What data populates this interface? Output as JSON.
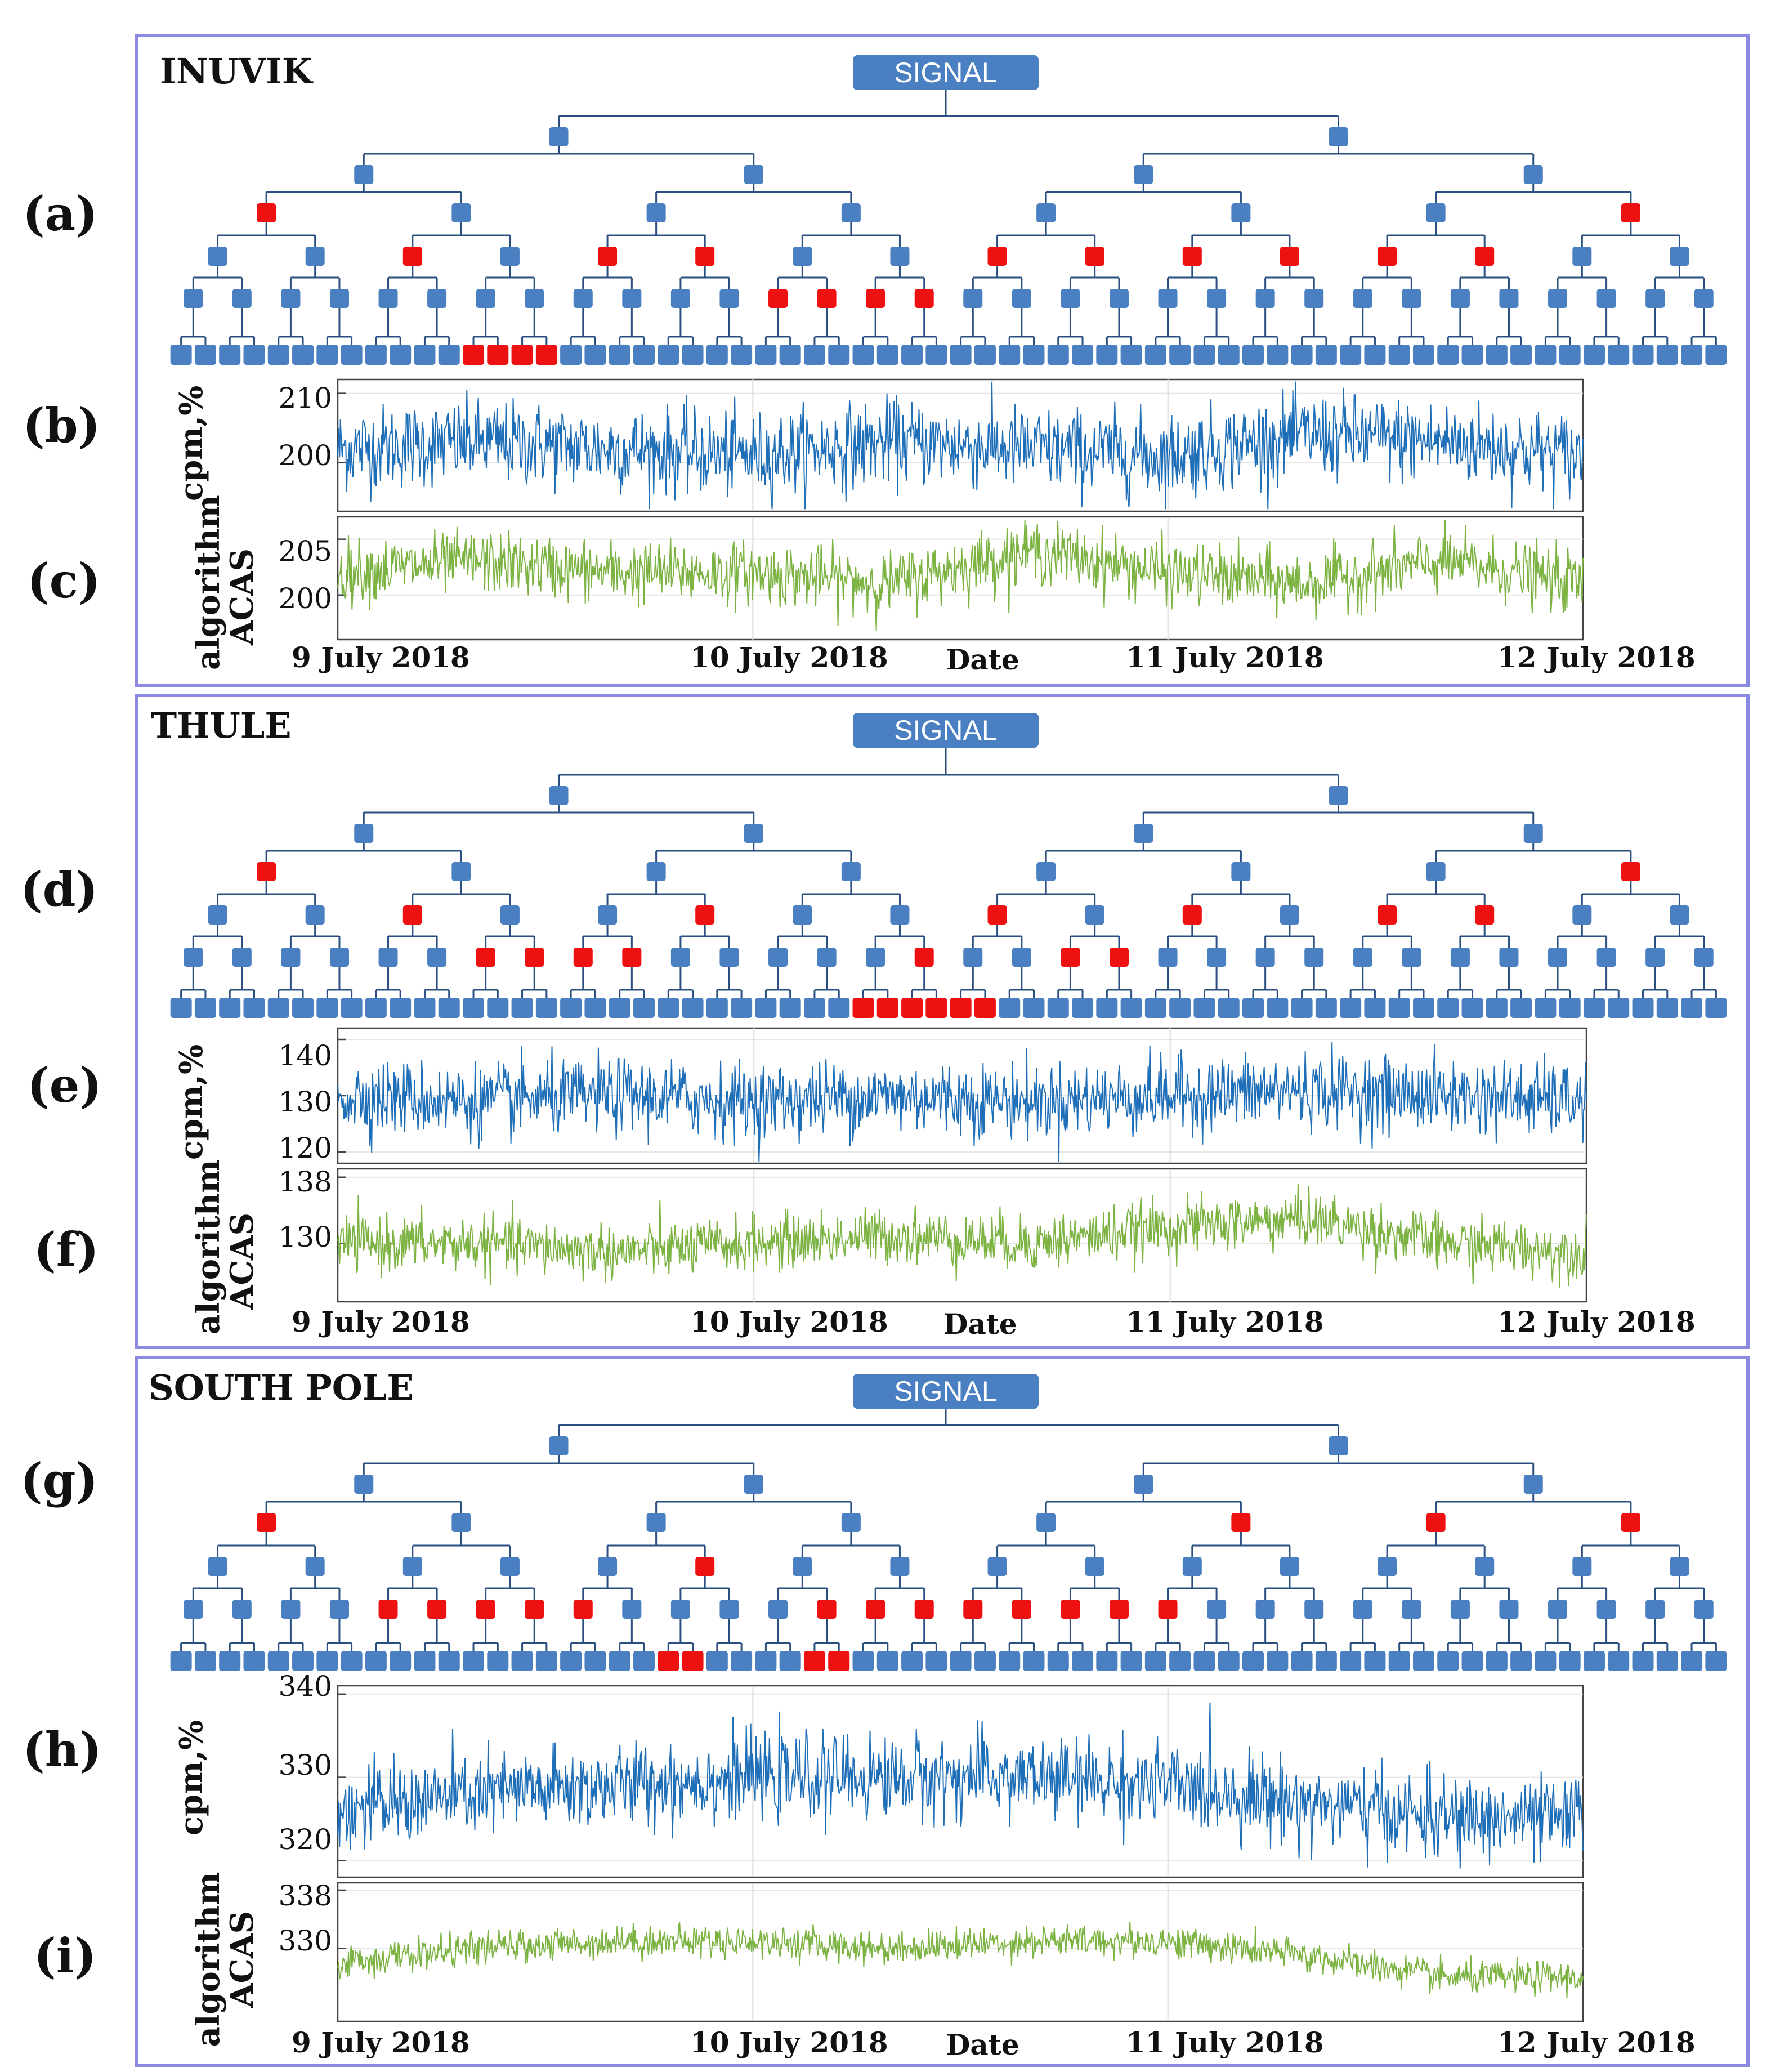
{
  "colors": {
    "tree_node": "#4a7fc1",
    "tree_highlight": "#ee1111",
    "tree_line": "#2a4f80",
    "raw_series": "#1f6fb8",
    "acas_series": "#7cb342",
    "box_border": "#8a8ae0"
  },
  "tree": {
    "root_label": "SIGNAL",
    "levels": 6
  },
  "x_axis": {
    "label": "Date",
    "ticks": [
      "9 July 2018",
      "10 July 2018",
      "11 July 2018",
      "12 July 2018"
    ]
  },
  "stations": [
    {
      "name": "INUVIK",
      "tree_label": "(a)",
      "highlighted_nodes": {
        "3": [
          0,
          7
        ],
        "4": [
          2,
          4,
          5,
          8,
          9,
          10,
          11,
          12,
          13
        ],
        "5": [
          12,
          13,
          14,
          15
        ],
        "6": [
          12,
          13,
          14,
          15
        ]
      },
      "raw_panel": {
        "label": "(b)",
        "ylabel": "cpm,%",
        "yticks": [
          "210",
          "200"
        ]
      },
      "acas_panel": {
        "label": "(c)",
        "ylabel_lines": [
          "algorithm",
          "ACAS"
        ],
        "yticks": [
          "205",
          "200"
        ]
      }
    },
    {
      "name": "THULE",
      "tree_label": "(d)",
      "highlighted_nodes": {
        "3": [
          0,
          7
        ],
        "4": [
          2,
          5,
          8,
          10,
          12,
          13
        ],
        "5": [
          6,
          7,
          8,
          9,
          15,
          18,
          19
        ],
        "6": [
          28,
          29,
          30,
          31,
          32,
          33
        ]
      },
      "raw_panel": {
        "label": "(e)",
        "ylabel": "cpm,%",
        "yticks": [
          "140",
          "130",
          "120"
        ]
      },
      "acas_panel": {
        "label": "(f)",
        "ylabel_lines": [
          "algorithm",
          "ACAS"
        ],
        "yticks": [
          "138",
          "130"
        ]
      }
    },
    {
      "name": "SOUTH POLE",
      "tree_label": "(g)",
      "highlighted_nodes": {
        "3": [
          0,
          5,
          6,
          7
        ],
        "4": [
          5
        ],
        "5": [
          4,
          5,
          6,
          7,
          8,
          13,
          14,
          15,
          16,
          17,
          18,
          19,
          20
        ],
        "6": [
          20,
          21,
          26,
          27
        ]
      },
      "raw_panel": {
        "label": "(h)",
        "ylabel": "cpm,%",
        "yticks": [
          "340",
          "330",
          "320"
        ]
      },
      "acas_panel": {
        "label": "(i)",
        "ylabel_lines": [
          "algorithm",
          "ACAS"
        ],
        "yticks": [
          "338",
          "330"
        ]
      }
    }
  ],
  "chart_data": [
    {
      "type": "line",
      "title": "INUVIK (b)",
      "ylabel": "cpm,%",
      "ylim": [
        193,
        212
      ],
      "series": [
        {
          "name": "raw",
          "mean": 201.5,
          "amplitude": 5.5,
          "trend": [
            202,
            203,
            202,
            201,
            203,
            202,
            201,
            204,
            203,
            201
          ]
        }
      ],
      "xlabel": "Date"
    },
    {
      "type": "line",
      "title": "INUVIK (c) ACAS",
      "ylabel": "algorithm ACAS",
      "ylim": [
        196,
        207
      ],
      "series": [
        {
          "name": "ACAS",
          "mean": 201.5,
          "amplitude": 2.5,
          "trend": [
            202,
            203,
            202,
            202,
            201,
            204,
            202,
            201,
            203,
            201
          ]
        }
      ],
      "xlabel": "Date"
    },
    {
      "type": "line",
      "title": "THULE (e)",
      "ylabel": "cpm,%",
      "ylim": [
        118,
        142
      ],
      "series": [
        {
          "name": "raw",
          "mean": 129.5,
          "amplitude": 6,
          "trend": [
            130,
            129,
            130,
            129,
            130,
            129,
            130,
            131,
            130,
            129
          ]
        }
      ],
      "xlabel": "Date"
    },
    {
      "type": "line",
      "title": "THULE (f) ACAS",
      "ylabel": "algorithm ACAS",
      "ylim": [
        123,
        139
      ],
      "series": [
        {
          "name": "ACAS",
          "mean": 130,
          "amplitude": 3,
          "trend": [
            130,
            130,
            129,
            130,
            131,
            130,
            132,
            133,
            130,
            129
          ]
        }
      ],
      "xlabel": "Date"
    },
    {
      "type": "line",
      "title": "SOUTH POLE (h)",
      "ylabel": "cpm,%",
      "ylim": [
        318,
        341
      ],
      "series": [
        {
          "name": "raw",
          "mean": 328,
          "amplitude": 4.5,
          "trend": [
            326,
            328,
            329,
            330,
            330,
            330,
            329,
            327,
            325,
            325
          ]
        }
      ],
      "xlabel": "Date"
    },
    {
      "type": "line",
      "title": "SOUTH POLE (i) ACAS",
      "ylabel": "algorithm ACAS",
      "ylim": [
        320,
        339
      ],
      "series": [
        {
          "name": "ACAS",
          "mean": 329,
          "amplitude": 2,
          "trend": [
            328,
            330,
            331,
            331,
            330,
            331,
            331,
            329,
            326,
            326
          ]
        }
      ],
      "xlabel": "Date"
    }
  ]
}
